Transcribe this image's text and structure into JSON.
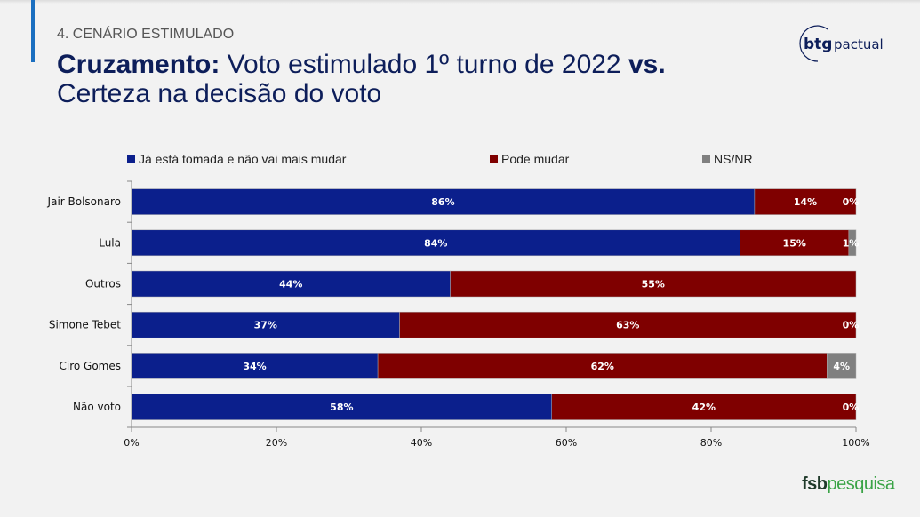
{
  "header": {
    "section": "4. CENÁRIO ESTIMULADO",
    "title_bold": "Cruzamento:",
    "title_regular": " Voto estimulado 1º turno de 2022 ",
    "title_bold2": "vs.",
    "title_line2": "Certeza na decisão do voto"
  },
  "logos": {
    "btg_a": "btg",
    "btg_b": "pactual",
    "fsb_a": "fsb",
    "fsb_b": "pesquisa"
  },
  "chart_data": {
    "type": "bar",
    "orientation": "horizontal",
    "stacked": true,
    "categories": [
      "Jair Bolsonaro",
      "Lula",
      "Outros",
      "Simone Tebet",
      "Ciro Gomes",
      "Não voto"
    ],
    "series": [
      {
        "name": "Já está tomada e não vai mais mudar",
        "color": "#0b1f8c",
        "values": [
          86,
          84,
          44,
          37,
          34,
          58
        ],
        "labels": [
          "86%",
          "84%",
          "44%",
          "37%",
          "34%",
          "58%"
        ]
      },
      {
        "name": "Pode mudar",
        "color": "#7f0000",
        "values": [
          14,
          15,
          55,
          63,
          62,
          42
        ],
        "labels": [
          "14%",
          "15%",
          "55%",
          "63%",
          "62%",
          "42%"
        ]
      },
      {
        "name": "NS/NR",
        "color": "#808080",
        "values": [
          0,
          1,
          null,
          0,
          4,
          0
        ],
        "labels": [
          "0%",
          "1%",
          "",
          "0%",
          "4%",
          "0%"
        ]
      }
    ],
    "xlim": [
      0,
      100
    ],
    "xticks": [
      "0%",
      "20%",
      "40%",
      "60%",
      "80%",
      "100%"
    ],
    "legend": "top",
    "grid": false
  }
}
